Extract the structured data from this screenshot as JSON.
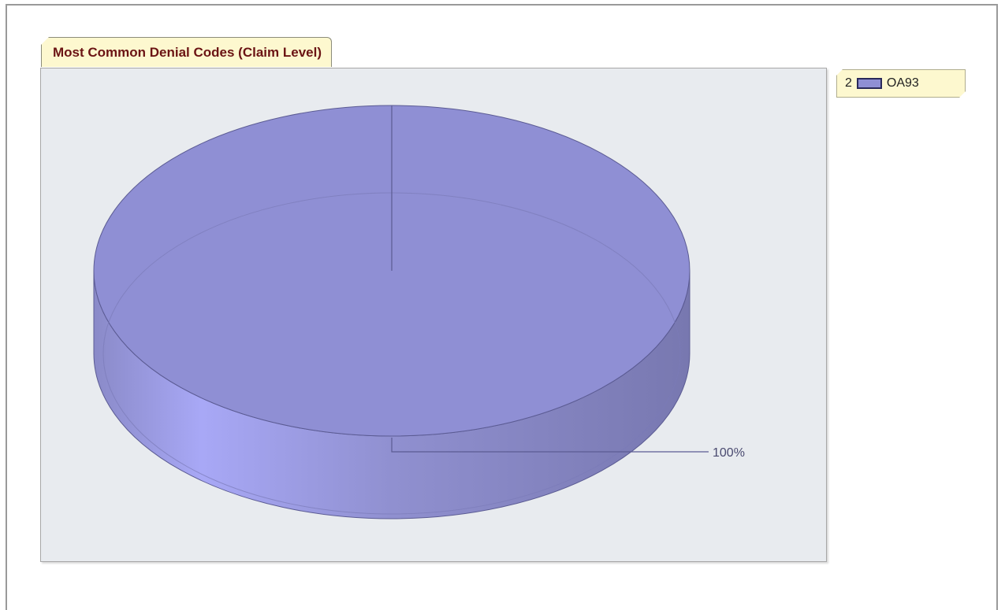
{
  "chart_data": {
    "type": "pie",
    "title": "Most Common Denial Codes (Claim Level)",
    "slices": [
      {
        "index": "2",
        "label": "OA93",
        "percent": 100,
        "percent_label": "100%",
        "color": "#8f8fd4"
      }
    ],
    "legend_position": "top-right",
    "style": "3d"
  },
  "colors": {
    "plot_background": "#e8ebef",
    "title_background": "#fdf8cf",
    "title_text": "#6b1414",
    "slice_top": "#8f8fd4",
    "slice_side_light": "#a9a9f5",
    "slice_side_dark": "#7c7cb4"
  }
}
